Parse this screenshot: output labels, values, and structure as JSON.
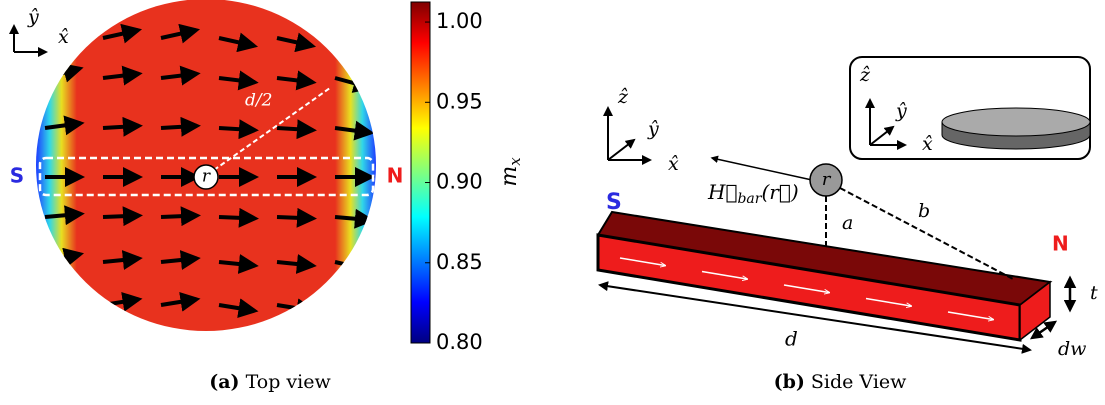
{
  "panel_a": {
    "caption_label": "(a)",
    "caption": "Top view",
    "axis_x": "x̂",
    "axis_y": "ŷ",
    "south": "S",
    "north": "N",
    "radius_label": "d/2",
    "point": "r",
    "colorbar": {
      "label": "m",
      "label_sub": "x",
      "lim": [
        0.8,
        1.0125
      ],
      "ticks": [
        {
          "value": 0.8,
          "label": "0.80"
        },
        {
          "value": 0.85,
          "label": "0.85"
        },
        {
          "value": 0.9,
          "label": "0.90"
        },
        {
          "value": 0.95,
          "label": "0.95"
        },
        {
          "value": 1.0,
          "label": "1.00"
        }
      ]
    }
  },
  "panel_b": {
    "caption_label": "(b)",
    "caption": "Side View",
    "axis_x": "x̂",
    "axis_y": "ŷ",
    "axis_z": "ẑ",
    "south": "S",
    "north": "N",
    "point": "r",
    "field": "H⃗",
    "field_sub": "bar",
    "field_arg": "(r⃗)",
    "dist_a": "a",
    "dist_b": "b",
    "length": "d",
    "thickness": "t",
    "width": "dw",
    "inset": {
      "axis_x": "x̂",
      "axis_y": "ŷ",
      "axis_z": "ẑ"
    }
  }
}
